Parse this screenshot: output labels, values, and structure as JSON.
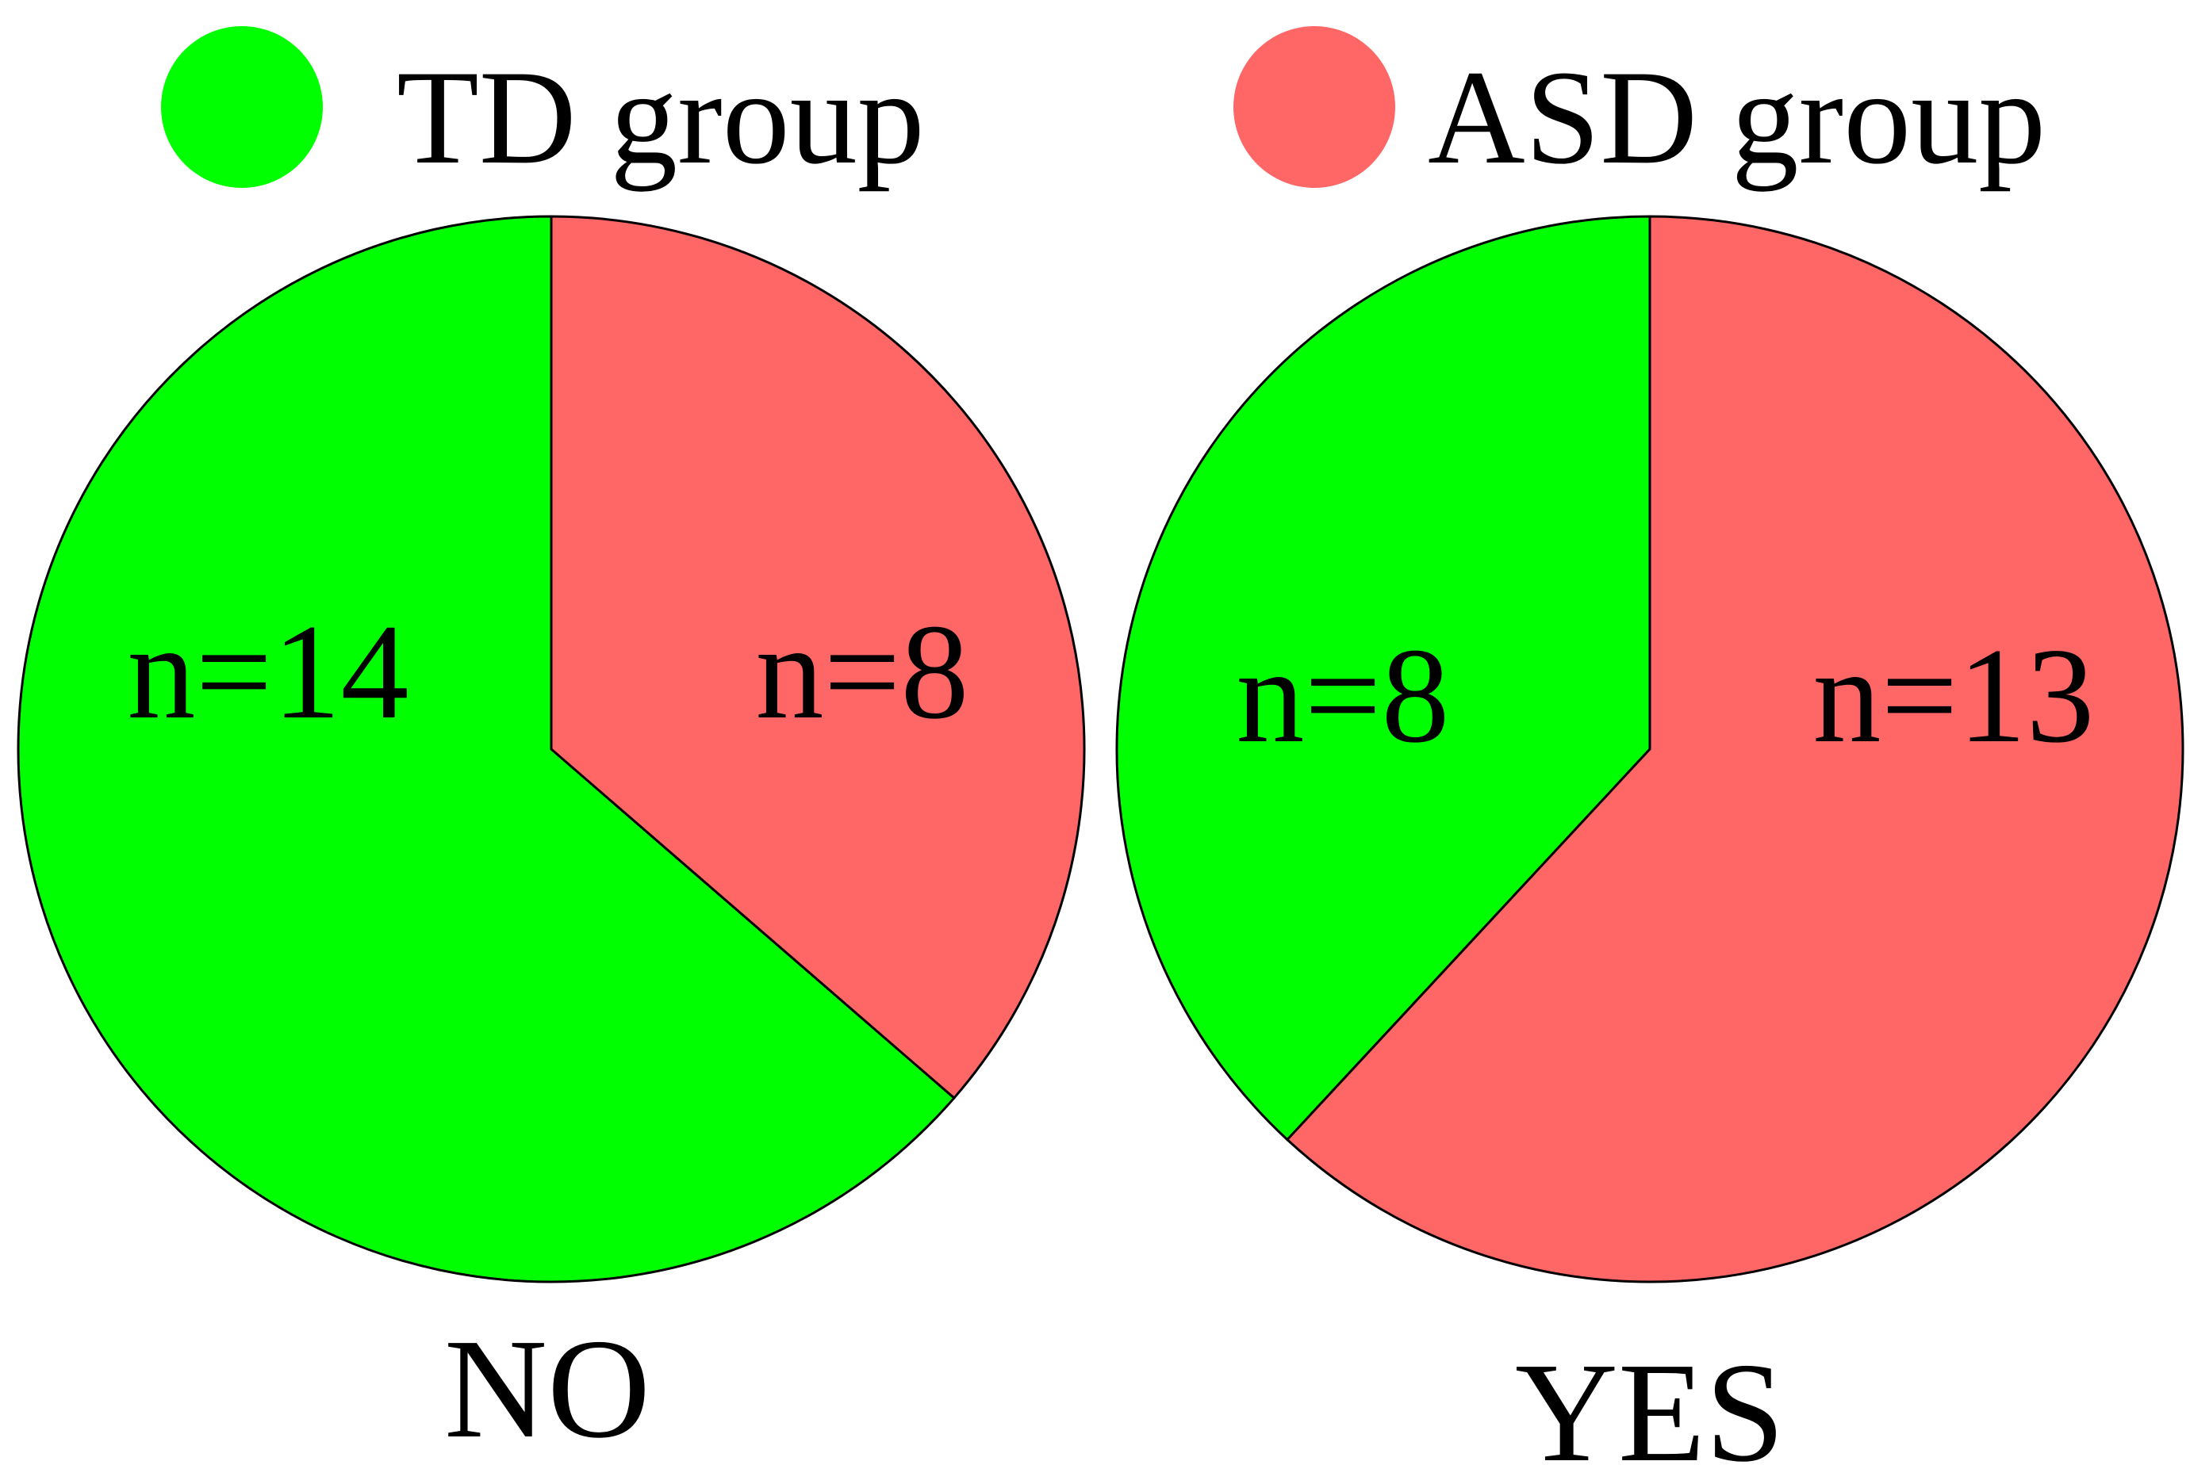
{
  "chart_data": {
    "type": "pie",
    "legend": {
      "placement": "top",
      "entries": [
        {
          "label": "TD group",
          "color": "#00ff00"
        },
        {
          "label": "ASD group",
          "color": "#ff6666"
        }
      ]
    },
    "charts": [
      {
        "label": "NO",
        "slices": [
          {
            "series": "TD group",
            "value": 14,
            "label": "n=14"
          },
          {
            "series": "ASD group",
            "value": 8,
            "label": "n=8"
          }
        ]
      },
      {
        "label": "YES",
        "slices": [
          {
            "series": "TD group",
            "value": 8,
            "label": "n=8"
          },
          {
            "series": "ASD group",
            "value": 13,
            "label": "n=13"
          }
        ]
      }
    ]
  }
}
